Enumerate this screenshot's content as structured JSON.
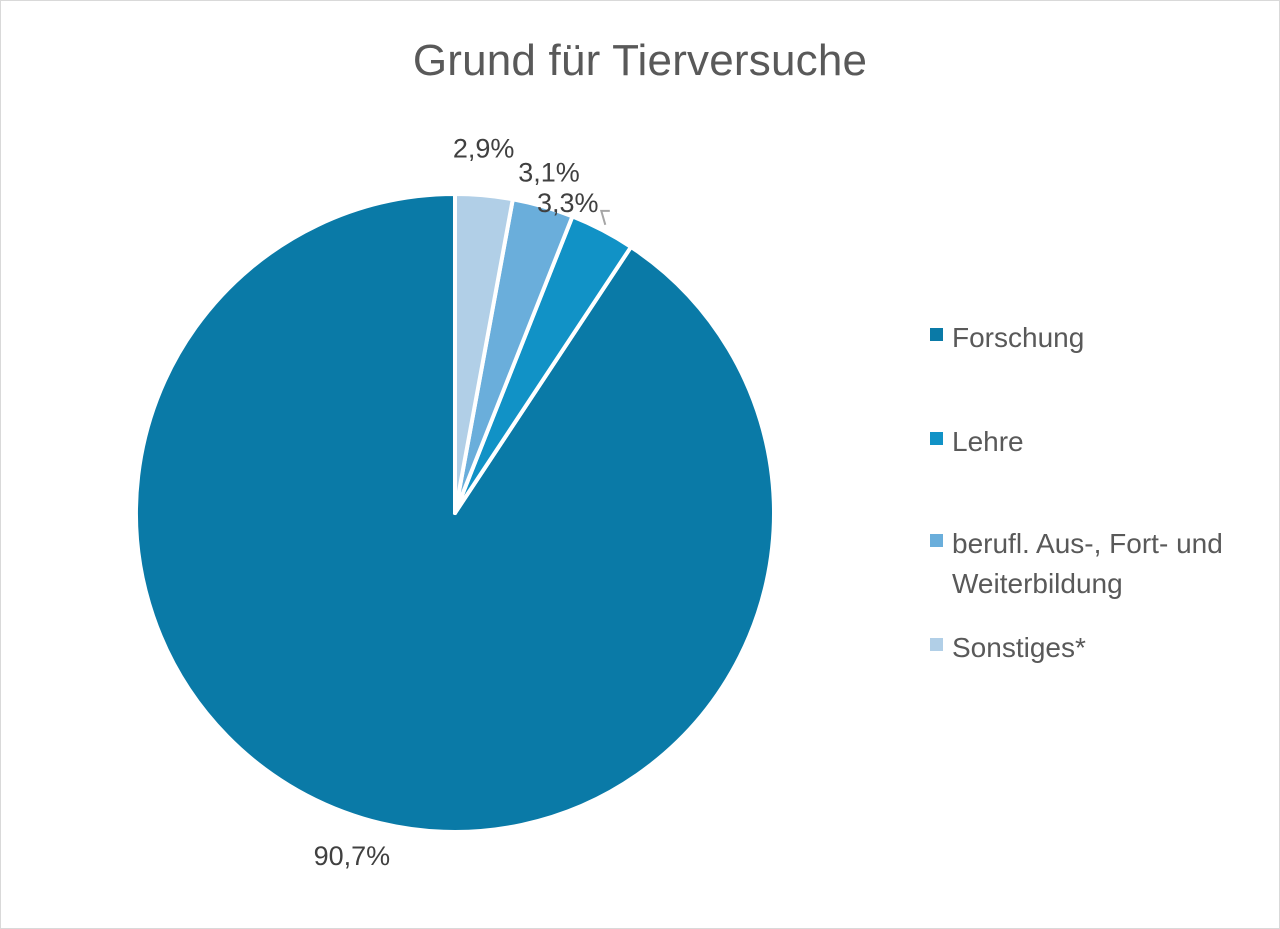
{
  "chart_data": {
    "type": "pie",
    "title": "Grund für Tierversuche",
    "series": [
      {
        "categories": [
          "Forschung",
          "Lehre",
          "berufl. Aus-, Fort- und Weiterbildung",
          "Sonstiges*"
        ],
        "values": [
          90.7,
          3.3,
          3.1,
          2.9
        ],
        "data_labels": [
          "90,7%",
          "3,3%",
          "3,1%",
          "2,9%"
        ]
      }
    ],
    "colors": [
      "#0a7aa7",
      "#1192c6",
      "#6aaedb",
      "#b1cfe7"
    ],
    "legend_position": "right",
    "start_angle": "12 o'clock",
    "direction": "counterclockwise"
  }
}
